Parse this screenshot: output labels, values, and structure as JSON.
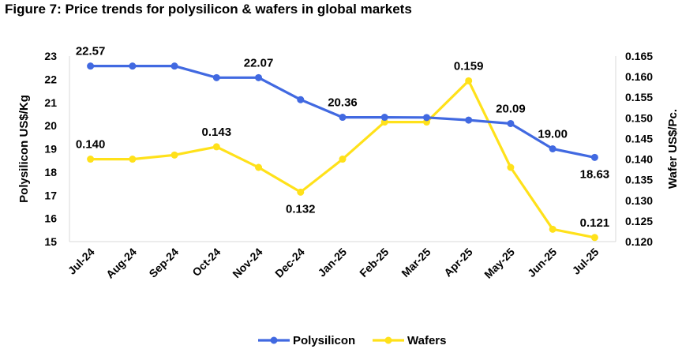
{
  "chart_data": {
    "type": "line",
    "title": "Figure 7: Price trends for polysilicon & wafers in global markets",
    "categories": [
      "Jul-24",
      "Aug-24",
      "Sep-24",
      "Oct-24",
      "Nov-24",
      "Dec-24",
      "Jan-25",
      "Feb-25",
      "Mar-25",
      "Apr-25",
      "May-25",
      "Jun-25",
      "Jul-25"
    ],
    "y_left": {
      "label": "Polysilicon US$/Kg",
      "range": [
        15,
        23
      ],
      "ticks": [
        "15",
        "16",
        "17",
        "18",
        "19",
        "20",
        "21",
        "22",
        "23"
      ]
    },
    "y_right": {
      "label": "Wafer US$/Pc.",
      "range": [
        0.12,
        0.165
      ],
      "ticks": [
        "0.120",
        "0.125",
        "0.130",
        "0.135",
        "0.140",
        "0.145",
        "0.150",
        "0.155",
        "0.160",
        "0.165"
      ]
    },
    "series": [
      {
        "name": "Polysilicon",
        "axis": "left",
        "color": "#4169e1",
        "values": [
          22.57,
          22.57,
          22.57,
          22.07,
          22.07,
          21.12,
          20.36,
          20.36,
          20.35,
          20.24,
          20.09,
          19.0,
          18.63
        ]
      },
      {
        "name": "Wafers",
        "axis": "right",
        "color": "#ffe11a",
        "values": [
          0.14,
          0.14,
          0.141,
          0.143,
          0.138,
          0.132,
          0.14,
          0.149,
          0.149,
          0.159,
          0.138,
          0.123,
          0.121
        ]
      }
    ],
    "data_labels": [
      {
        "series": 0,
        "index": 0,
        "text": "22.57",
        "pos": "above"
      },
      {
        "series": 0,
        "index": 4,
        "text": "22.07",
        "pos": "above"
      },
      {
        "series": 0,
        "index": 6,
        "text": "20.36",
        "pos": "above"
      },
      {
        "series": 0,
        "index": 10,
        "text": "20.09",
        "pos": "above"
      },
      {
        "series": 0,
        "index": 11,
        "text": "19.00",
        "pos": "above"
      },
      {
        "series": 0,
        "index": 12,
        "text": "18.63",
        "pos": "below"
      },
      {
        "series": 1,
        "index": 0,
        "text": "0.140",
        "pos": "above"
      },
      {
        "series": 1,
        "index": 3,
        "text": "0.143",
        "pos": "above"
      },
      {
        "series": 1,
        "index": 5,
        "text": "0.132",
        "pos": "below"
      },
      {
        "series": 1,
        "index": 9,
        "text": "0.159",
        "pos": "above"
      },
      {
        "series": 1,
        "index": 12,
        "text": "0.121",
        "pos": "above"
      }
    ],
    "legend": {
      "position": "bottom-center",
      "items": [
        "Polysilicon",
        "Wafers"
      ]
    },
    "grid": false
  }
}
